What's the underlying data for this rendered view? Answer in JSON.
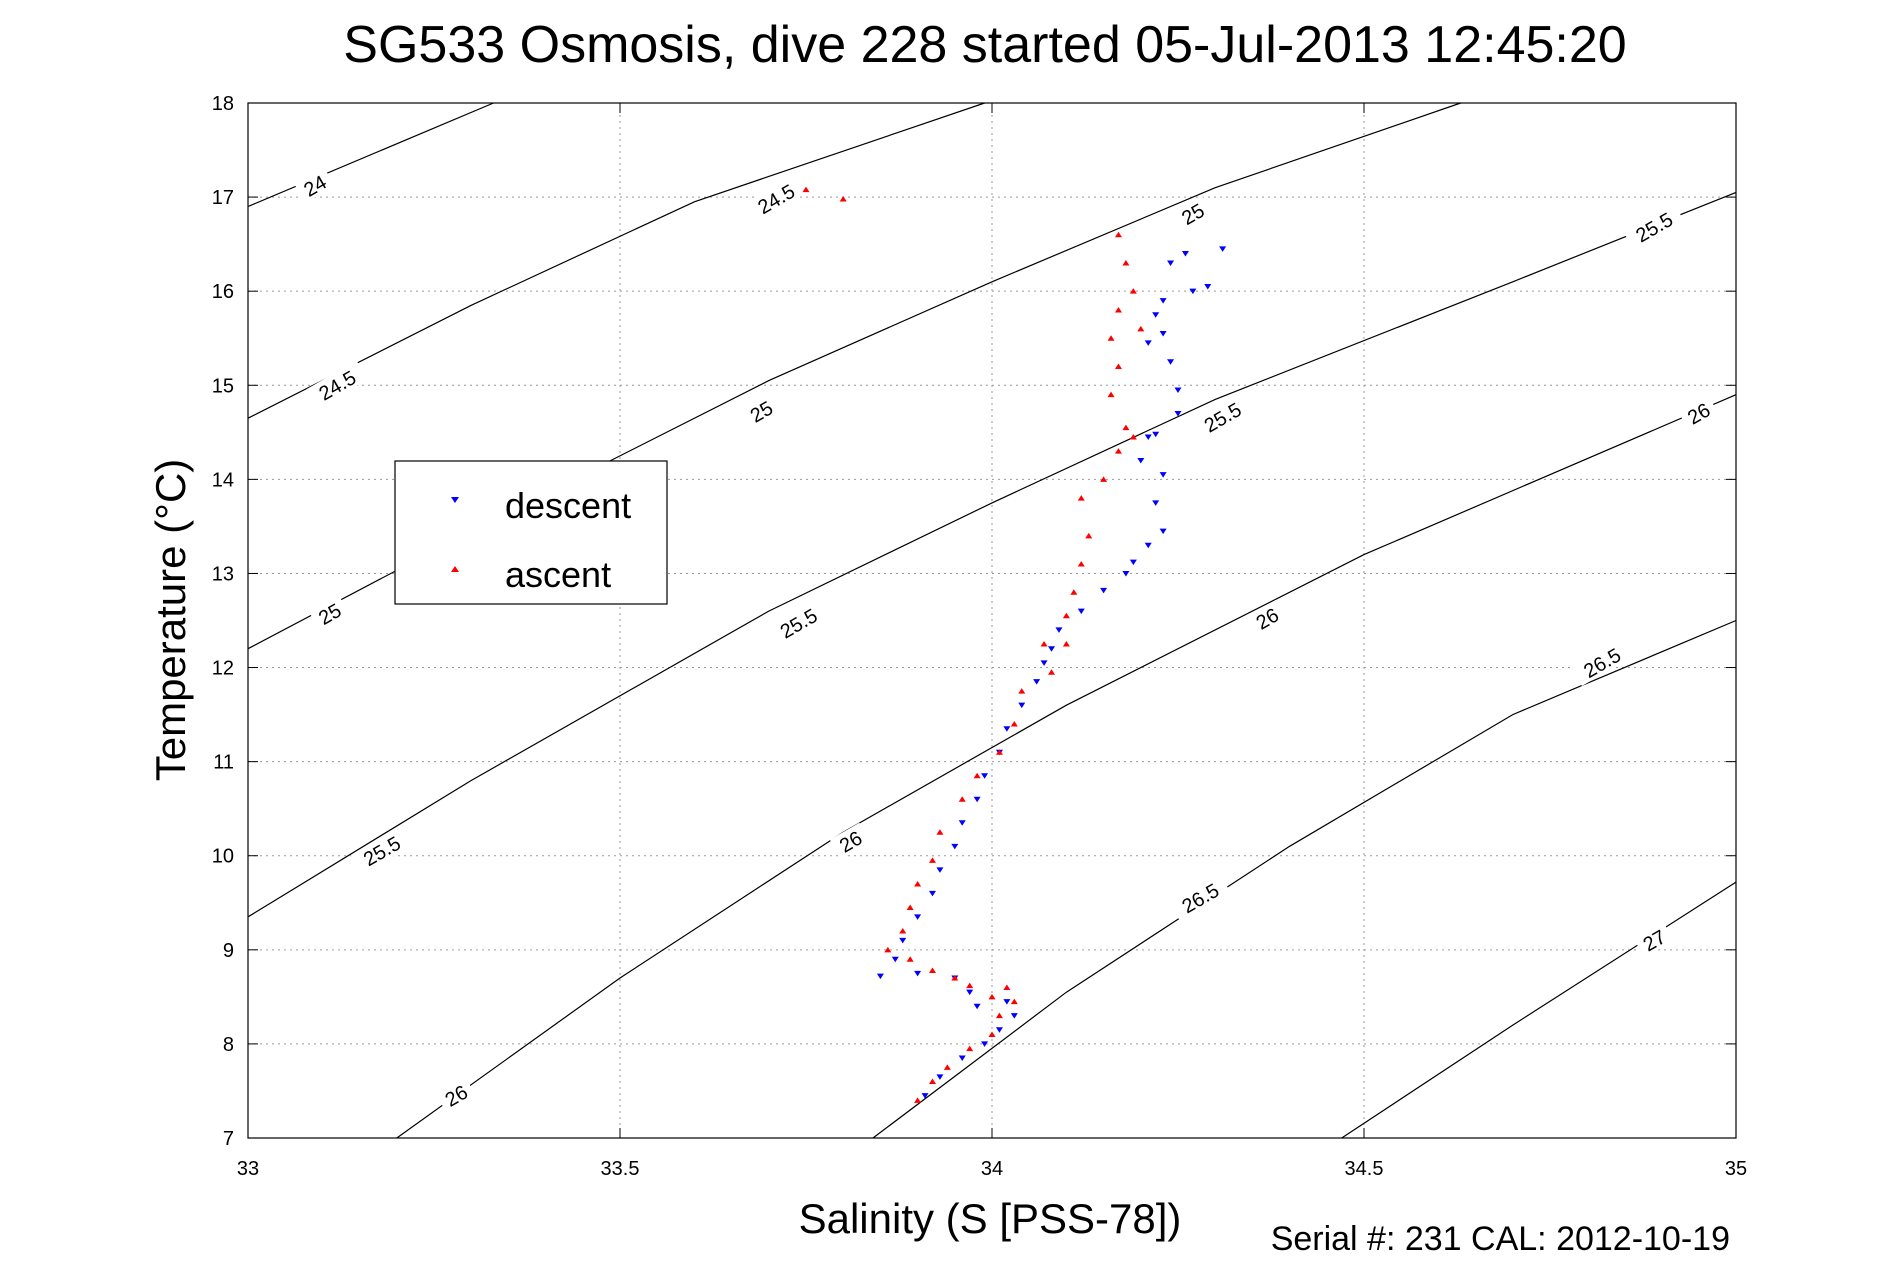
{
  "chart_data": {
    "type": "scatter",
    "title": "SG533 Osmosis, dive 228 started 05-Jul-2013 12:45:20",
    "xlabel": "Salinity (S [PSS-78])",
    "ylabel": "Temperature (°C)",
    "xlim": [
      33,
      35
    ],
    "ylim": [
      7,
      18
    ],
    "xticks": [
      "33",
      "33.5",
      "34",
      "34.5",
      "35"
    ],
    "yticks": [
      "7",
      "8",
      "9",
      "10",
      "11",
      "12",
      "13",
      "14",
      "15",
      "16",
      "17",
      "18"
    ],
    "grid": true,
    "legend_position": "middle-left",
    "footer": "Serial #: 231  CAL: 2012-10-19",
    "isopycnals": [
      {
        "label": "24",
        "points": [
          [
            33.0,
            16.9
          ],
          [
            33.33,
            18.0
          ]
        ]
      },
      {
        "label": "24.5",
        "points": [
          [
            33.0,
            14.65
          ],
          [
            33.3,
            15.85
          ],
          [
            33.6,
            16.95
          ],
          [
            33.99,
            18.0
          ]
        ]
      },
      {
        "label": "25",
        "points": [
          [
            33.0,
            12.2
          ],
          [
            33.3,
            13.45
          ],
          [
            33.7,
            15.05
          ],
          [
            34.0,
            16.1
          ],
          [
            34.3,
            17.1
          ],
          [
            34.63,
            18.0
          ]
        ]
      },
      {
        "label": "25.5",
        "points": [
          [
            33.0,
            9.35
          ],
          [
            33.3,
            10.8
          ],
          [
            33.7,
            12.6
          ],
          [
            34.0,
            13.75
          ],
          [
            34.3,
            14.85
          ],
          [
            34.7,
            16.1
          ],
          [
            35.0,
            17.05
          ]
        ]
      },
      {
        "label": "26",
        "points": [
          [
            33.2,
            7.0
          ],
          [
            33.5,
            8.7
          ],
          [
            33.8,
            10.25
          ],
          [
            34.1,
            11.6
          ],
          [
            34.5,
            13.2
          ],
          [
            35.0,
            14.9
          ]
        ]
      },
      {
        "label": "26.5",
        "points": [
          [
            33.84,
            7.0
          ],
          [
            34.1,
            8.55
          ],
          [
            34.4,
            10.1
          ],
          [
            34.7,
            11.5
          ],
          [
            35.0,
            12.5
          ]
        ]
      },
      {
        "label": "27",
        "points": [
          [
            34.47,
            7.0
          ],
          [
            34.7,
            8.2
          ],
          [
            35.0,
            9.72
          ]
        ]
      }
    ],
    "isopycnal_labels": [
      {
        "text": "24",
        "x": 33.09,
        "y": 17.12,
        "angle": -30
      },
      {
        "text": "24.5",
        "x": 33.71,
        "y": 16.98,
        "angle": -30
      },
      {
        "text": "24.5",
        "x": 33.12,
        "y": 15.0,
        "angle": -30
      },
      {
        "text": "25",
        "x": 34.27,
        "y": 16.82,
        "angle": -30
      },
      {
        "text": "25",
        "x": 33.69,
        "y": 14.72,
        "angle": -30
      },
      {
        "text": "25",
        "x": 33.11,
        "y": 12.57,
        "angle": -30
      },
      {
        "text": "25.5",
        "x": 34.89,
        "y": 16.68,
        "angle": -30
      },
      {
        "text": "25.5",
        "x": 34.31,
        "y": 14.66,
        "angle": -30
      },
      {
        "text": "25.5",
        "x": 33.74,
        "y": 12.47,
        "angle": -30
      },
      {
        "text": "25.5",
        "x": 33.18,
        "y": 10.05,
        "angle": -30
      },
      {
        "text": "26",
        "x": 34.95,
        "y": 14.7,
        "angle": -30
      },
      {
        "text": "26",
        "x": 34.37,
        "y": 12.52,
        "angle": -30
      },
      {
        "text": "26",
        "x": 33.81,
        "y": 10.15,
        "angle": -30
      },
      {
        "text": "26",
        "x": 33.28,
        "y": 7.45,
        "angle": -30
      },
      {
        "text": "26.5",
        "x": 34.82,
        "y": 12.05,
        "angle": -30
      },
      {
        "text": "26.5",
        "x": 34.28,
        "y": 9.55,
        "angle": -30
      },
      {
        "text": "27",
        "x": 34.89,
        "y": 9.1,
        "angle": -30
      }
    ],
    "series": [
      {
        "name": "descent",
        "color": "#0000ff",
        "marker": "triangle-down",
        "points": [
          [
            34.31,
            16.45
          ],
          [
            34.26,
            16.4
          ],
          [
            34.24,
            16.3
          ],
          [
            34.29,
            16.05
          ],
          [
            34.27,
            16.0
          ],
          [
            34.23,
            15.9
          ],
          [
            34.22,
            15.75
          ],
          [
            34.23,
            15.55
          ],
          [
            34.21,
            15.45
          ],
          [
            34.24,
            15.25
          ],
          [
            34.25,
            14.95
          ],
          [
            34.25,
            14.7
          ],
          [
            34.22,
            14.48
          ],
          [
            34.21,
            14.45
          ],
          [
            34.2,
            14.2
          ],
          [
            34.23,
            14.05
          ],
          [
            34.22,
            13.75
          ],
          [
            34.23,
            13.45
          ],
          [
            34.21,
            13.3
          ],
          [
            34.19,
            13.12
          ],
          [
            34.18,
            13.0
          ],
          [
            34.15,
            12.82
          ],
          [
            34.12,
            12.6
          ],
          [
            34.09,
            12.4
          ],
          [
            34.08,
            12.2
          ],
          [
            34.07,
            12.05
          ],
          [
            34.06,
            11.85
          ],
          [
            34.04,
            11.6
          ],
          [
            34.02,
            11.35
          ],
          [
            34.01,
            11.1
          ],
          [
            33.99,
            10.85
          ],
          [
            33.98,
            10.6
          ],
          [
            33.96,
            10.35
          ],
          [
            33.95,
            10.1
          ],
          [
            33.93,
            9.85
          ],
          [
            33.92,
            9.6
          ],
          [
            33.9,
            9.35
          ],
          [
            33.88,
            9.1
          ],
          [
            33.87,
            8.9
          ],
          [
            33.85,
            8.72
          ],
          [
            33.9,
            8.75
          ],
          [
            33.95,
            8.7
          ],
          [
            33.97,
            8.55
          ],
          [
            33.98,
            8.4
          ],
          [
            34.02,
            8.45
          ],
          [
            34.03,
            8.3
          ],
          [
            34.01,
            8.15
          ],
          [
            33.99,
            8.0
          ],
          [
            33.96,
            7.85
          ],
          [
            33.93,
            7.65
          ],
          [
            33.91,
            7.45
          ]
        ]
      },
      {
        "name": "ascent",
        "color": "#ff0000",
        "marker": "triangle-up",
        "points": [
          [
            33.75,
            17.08
          ],
          [
            33.8,
            16.98
          ],
          [
            34.17,
            16.6
          ],
          [
            34.18,
            16.3
          ],
          [
            34.19,
            16.0
          ],
          [
            34.17,
            15.8
          ],
          [
            34.2,
            15.6
          ],
          [
            34.16,
            15.5
          ],
          [
            34.17,
            15.2
          ],
          [
            34.16,
            14.9
          ],
          [
            34.18,
            14.55
          ],
          [
            34.17,
            14.3
          ],
          [
            34.19,
            14.45
          ],
          [
            34.15,
            14.0
          ],
          [
            34.12,
            13.8
          ],
          [
            34.13,
            13.4
          ],
          [
            34.12,
            13.1
          ],
          [
            34.11,
            12.8
          ],
          [
            34.1,
            12.55
          ],
          [
            34.07,
            12.25
          ],
          [
            34.1,
            12.25
          ],
          [
            34.08,
            11.95
          ],
          [
            34.04,
            11.75
          ],
          [
            34.03,
            11.4
          ],
          [
            34.01,
            11.1
          ],
          [
            33.98,
            10.85
          ],
          [
            33.96,
            10.6
          ],
          [
            33.93,
            10.25
          ],
          [
            33.92,
            9.95
          ],
          [
            33.9,
            9.7
          ],
          [
            33.89,
            9.45
          ],
          [
            33.88,
            9.2
          ],
          [
            33.86,
            9.0
          ],
          [
            33.89,
            8.9
          ],
          [
            33.92,
            8.78
          ],
          [
            33.95,
            8.7
          ],
          [
            33.97,
            8.62
          ],
          [
            34.0,
            8.5
          ],
          [
            34.02,
            8.6
          ],
          [
            34.03,
            8.45
          ],
          [
            34.01,
            8.3
          ],
          [
            34.0,
            8.1
          ],
          [
            33.97,
            7.95
          ],
          [
            33.94,
            7.75
          ],
          [
            33.92,
            7.6
          ],
          [
            33.9,
            7.4
          ]
        ]
      }
    ]
  }
}
